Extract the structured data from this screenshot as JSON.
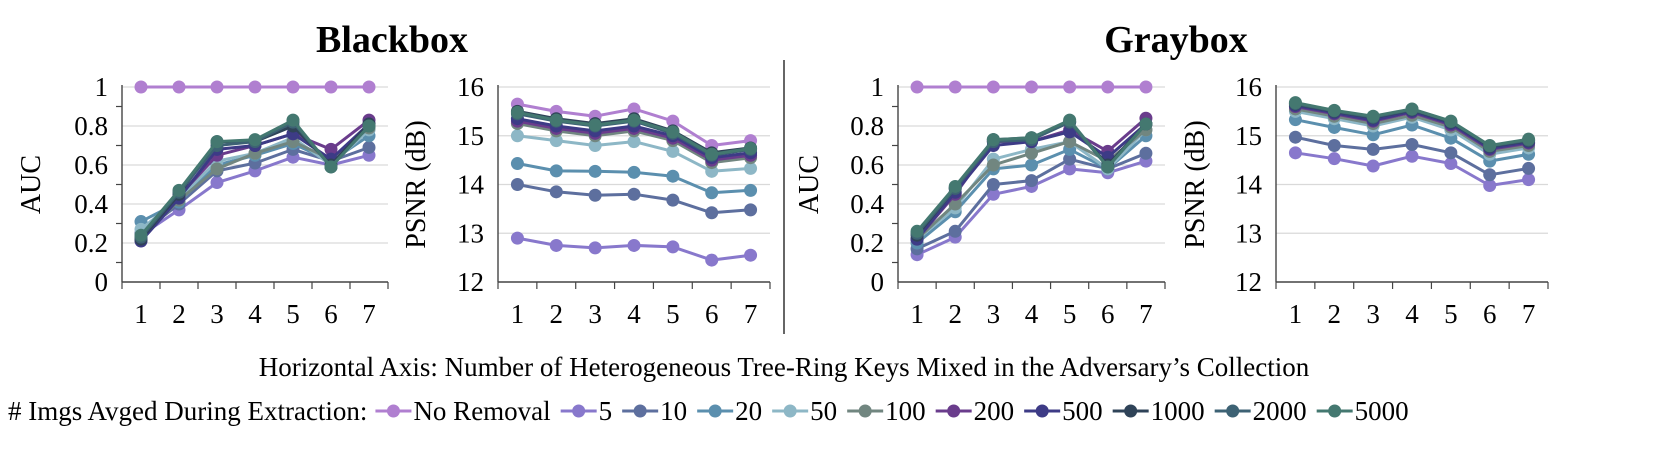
{
  "figure": {
    "caption": "Horizontal Axis: Number of Heterogeneous Tree-Ring Keys Mixed in the Adversary’s Collection",
    "legend_title": "# Imgs Avged During Extraction:",
    "section_titles": [
      "Blackbox",
      "Graybox"
    ]
  },
  "series_styles": [
    {
      "name": "No Removal",
      "color": "#b07fd0"
    },
    {
      "name": "5",
      "color": "#8878cc"
    },
    {
      "name": "10",
      "color": "#5d6f9e"
    },
    {
      "name": "20",
      "color": "#5b8fae"
    },
    {
      "name": "50",
      "color": "#8db7c6"
    },
    {
      "name": "100",
      "color": "#718680"
    },
    {
      "name": "200",
      "color": "#6a3c8c"
    },
    {
      "name": "500",
      "color": "#3d3b86"
    },
    {
      "name": "1000",
      "color": "#2f4358"
    },
    {
      "name": "2000",
      "color": "#3d6274"
    },
    {
      "name": "5000",
      "color": "#447870"
    }
  ],
  "chart_data": [
    {
      "type": "line",
      "group": "Blackbox",
      "title": "",
      "xlabel": "",
      "ylabel": "AUC",
      "x": [
        1,
        2,
        3,
        4,
        5,
        6,
        7
      ],
      "ylim": [
        0,
        1
      ],
      "yticks": [
        "0",
        "0.2",
        "0.4",
        "0.6",
        "0.8",
        "1"
      ],
      "ytick_values": [
        0,
        0.2,
        0.4,
        0.6,
        0.8,
        1
      ],
      "series": [
        {
          "name": "No Removal",
          "values": [
            1,
            1,
            1,
            1,
            1,
            1,
            1
          ]
        },
        {
          "name": "5",
          "values": [
            0.24,
            0.37,
            0.51,
            0.57,
            0.64,
            0.6,
            0.65
          ]
        },
        {
          "name": "10",
          "values": [
            0.25,
            0.4,
            0.57,
            0.61,
            0.68,
            0.62,
            0.69
          ]
        },
        {
          "name": "20",
          "values": [
            0.31,
            0.41,
            0.6,
            0.65,
            0.71,
            0.62,
            0.75
          ]
        },
        {
          "name": "50",
          "values": [
            0.27,
            0.43,
            0.62,
            0.66,
            0.74,
            0.6,
            0.78
          ]
        },
        {
          "name": "100",
          "values": [
            0.22,
            0.42,
            0.58,
            0.66,
            0.72,
            0.63,
            0.79
          ]
        },
        {
          "name": "200",
          "values": [
            0.22,
            0.44,
            0.65,
            0.7,
            0.76,
            0.68,
            0.83
          ]
        },
        {
          "name": "500",
          "values": [
            0.21,
            0.43,
            0.68,
            0.7,
            0.76,
            0.63,
            0.81
          ]
        },
        {
          "name": "1000",
          "values": [
            0.22,
            0.45,
            0.72,
            0.72,
            0.8,
            0.6,
            0.81
          ]
        },
        {
          "name": "2000",
          "values": [
            0.23,
            0.46,
            0.7,
            0.72,
            0.82,
            0.59,
            0.8
          ]
        },
        {
          "name": "5000",
          "values": [
            0.24,
            0.47,
            0.72,
            0.73,
            0.83,
            0.59,
            0.8
          ]
        }
      ]
    },
    {
      "type": "line",
      "group": "Blackbox",
      "title": "",
      "xlabel": "",
      "ylabel": "PSNR (dB)",
      "x": [
        1,
        2,
        3,
        4,
        5,
        6,
        7
      ],
      "ylim": [
        12,
        16
      ],
      "yticks": [
        "12",
        "13",
        "14",
        "15",
        "16"
      ],
      "ytick_values": [
        12,
        13,
        14,
        15,
        16
      ],
      "series": [
        {
          "name": "No Removal",
          "values": [
            15.65,
            15.5,
            15.4,
            15.55,
            15.3,
            14.8,
            14.9
          ]
        },
        {
          "name": "5",
          "values": [
            12.9,
            12.75,
            12.7,
            12.75,
            12.72,
            12.45,
            12.55
          ]
        },
        {
          "name": "10",
          "values": [
            14.0,
            13.85,
            13.78,
            13.8,
            13.68,
            13.42,
            13.48
          ]
        },
        {
          "name": "20",
          "values": [
            14.43,
            14.28,
            14.27,
            14.25,
            14.17,
            13.83,
            13.88
          ]
        },
        {
          "name": "50",
          "values": [
            15.0,
            14.9,
            14.8,
            14.88,
            14.68,
            14.27,
            14.33
          ]
        },
        {
          "name": "100",
          "values": [
            15.25,
            15.1,
            15.0,
            15.1,
            14.9,
            14.45,
            14.55
          ]
        },
        {
          "name": "200",
          "values": [
            15.3,
            15.15,
            15.05,
            15.15,
            14.95,
            14.5,
            14.6
          ]
        },
        {
          "name": "500",
          "values": [
            15.35,
            15.2,
            15.1,
            15.2,
            15.0,
            14.55,
            14.65
          ]
        },
        {
          "name": "1000",
          "values": [
            15.5,
            15.35,
            15.25,
            15.35,
            15.1,
            14.65,
            14.75
          ]
        },
        {
          "name": "2000",
          "values": [
            15.45,
            15.3,
            15.2,
            15.3,
            15.05,
            14.6,
            14.72
          ]
        },
        {
          "name": "5000",
          "values": [
            15.48,
            15.32,
            15.22,
            15.32,
            15.08,
            14.62,
            14.74
          ]
        }
      ]
    },
    {
      "type": "line",
      "group": "Graybox",
      "title": "",
      "xlabel": "",
      "ylabel": "AUC",
      "x": [
        1,
        2,
        3,
        4,
        5,
        6,
        7
      ],
      "ylim": [
        0,
        1
      ],
      "yticks": [
        "0",
        "0.2",
        "0.4",
        "0.6",
        "0.8",
        "1"
      ],
      "ytick_values": [
        0,
        0.2,
        0.4,
        0.6,
        0.8,
        1
      ],
      "series": [
        {
          "name": "No Removal",
          "values": [
            1,
            1,
            1,
            1,
            1,
            1,
            1
          ]
        },
        {
          "name": "5",
          "values": [
            0.14,
            0.23,
            0.45,
            0.49,
            0.58,
            0.56,
            0.62
          ]
        },
        {
          "name": "10",
          "values": [
            0.17,
            0.26,
            0.5,
            0.52,
            0.63,
            0.58,
            0.66
          ]
        },
        {
          "name": "20",
          "values": [
            0.2,
            0.36,
            0.58,
            0.6,
            0.68,
            0.58,
            0.75
          ]
        },
        {
          "name": "50",
          "values": [
            0.22,
            0.38,
            0.63,
            0.68,
            0.72,
            0.58,
            0.78
          ]
        },
        {
          "name": "100",
          "values": [
            0.22,
            0.4,
            0.6,
            0.66,
            0.72,
            0.62,
            0.78
          ]
        },
        {
          "name": "200",
          "values": [
            0.22,
            0.45,
            0.72,
            0.72,
            0.78,
            0.67,
            0.84
          ]
        },
        {
          "name": "500",
          "values": [
            0.22,
            0.46,
            0.7,
            0.72,
            0.77,
            0.64,
            0.81
          ]
        },
        {
          "name": "1000",
          "values": [
            0.24,
            0.48,
            0.73,
            0.74,
            0.82,
            0.6,
            0.81
          ]
        },
        {
          "name": "2000",
          "values": [
            0.25,
            0.48,
            0.72,
            0.73,
            0.82,
            0.59,
            0.81
          ]
        },
        {
          "name": "5000",
          "values": [
            0.26,
            0.49,
            0.73,
            0.74,
            0.83,
            0.59,
            0.81
          ]
        }
      ]
    },
    {
      "type": "line",
      "group": "Graybox",
      "title": "",
      "xlabel": "",
      "ylabel": "PSNR (dB)",
      "x": [
        1,
        2,
        3,
        4,
        5,
        6,
        7
      ],
      "ylim": [
        12,
        16
      ],
      "yticks": [
        "12",
        "13",
        "14",
        "15",
        "16"
      ],
      "ytick_values": [
        12,
        13,
        14,
        15,
        16
      ],
      "series": [
        {
          "name": "No Removal",
          "values": [
            15.6,
            15.45,
            15.35,
            15.5,
            15.25,
            14.75,
            14.85
          ]
        },
        {
          "name": "5",
          "values": [
            14.65,
            14.53,
            14.38,
            14.58,
            14.43,
            13.98,
            14.1
          ]
        },
        {
          "name": "10",
          "values": [
            14.97,
            14.8,
            14.72,
            14.82,
            14.65,
            14.2,
            14.33
          ]
        },
        {
          "name": "20",
          "values": [
            15.33,
            15.17,
            15.02,
            15.22,
            14.95,
            14.48,
            14.62
          ]
        },
        {
          "name": "50",
          "values": [
            15.5,
            15.35,
            15.2,
            15.38,
            15.12,
            14.62,
            14.75
          ]
        },
        {
          "name": "100",
          "values": [
            15.55,
            15.4,
            15.25,
            15.42,
            15.18,
            14.68,
            14.8
          ]
        },
        {
          "name": "200",
          "values": [
            15.6,
            15.45,
            15.3,
            15.48,
            15.22,
            14.72,
            14.85
          ]
        },
        {
          "name": "500",
          "values": [
            15.62,
            15.47,
            15.32,
            15.5,
            15.25,
            14.74,
            14.87
          ]
        },
        {
          "name": "1000",
          "values": [
            15.65,
            15.5,
            15.37,
            15.53,
            15.28,
            14.78,
            14.9
          ]
        },
        {
          "name": "2000",
          "values": [
            15.66,
            15.51,
            15.38,
            15.54,
            15.29,
            14.79,
            14.91
          ]
        },
        {
          "name": "5000",
          "values": [
            15.68,
            15.52,
            15.4,
            15.55,
            15.3,
            14.8,
            14.93
          ]
        }
      ]
    }
  ]
}
